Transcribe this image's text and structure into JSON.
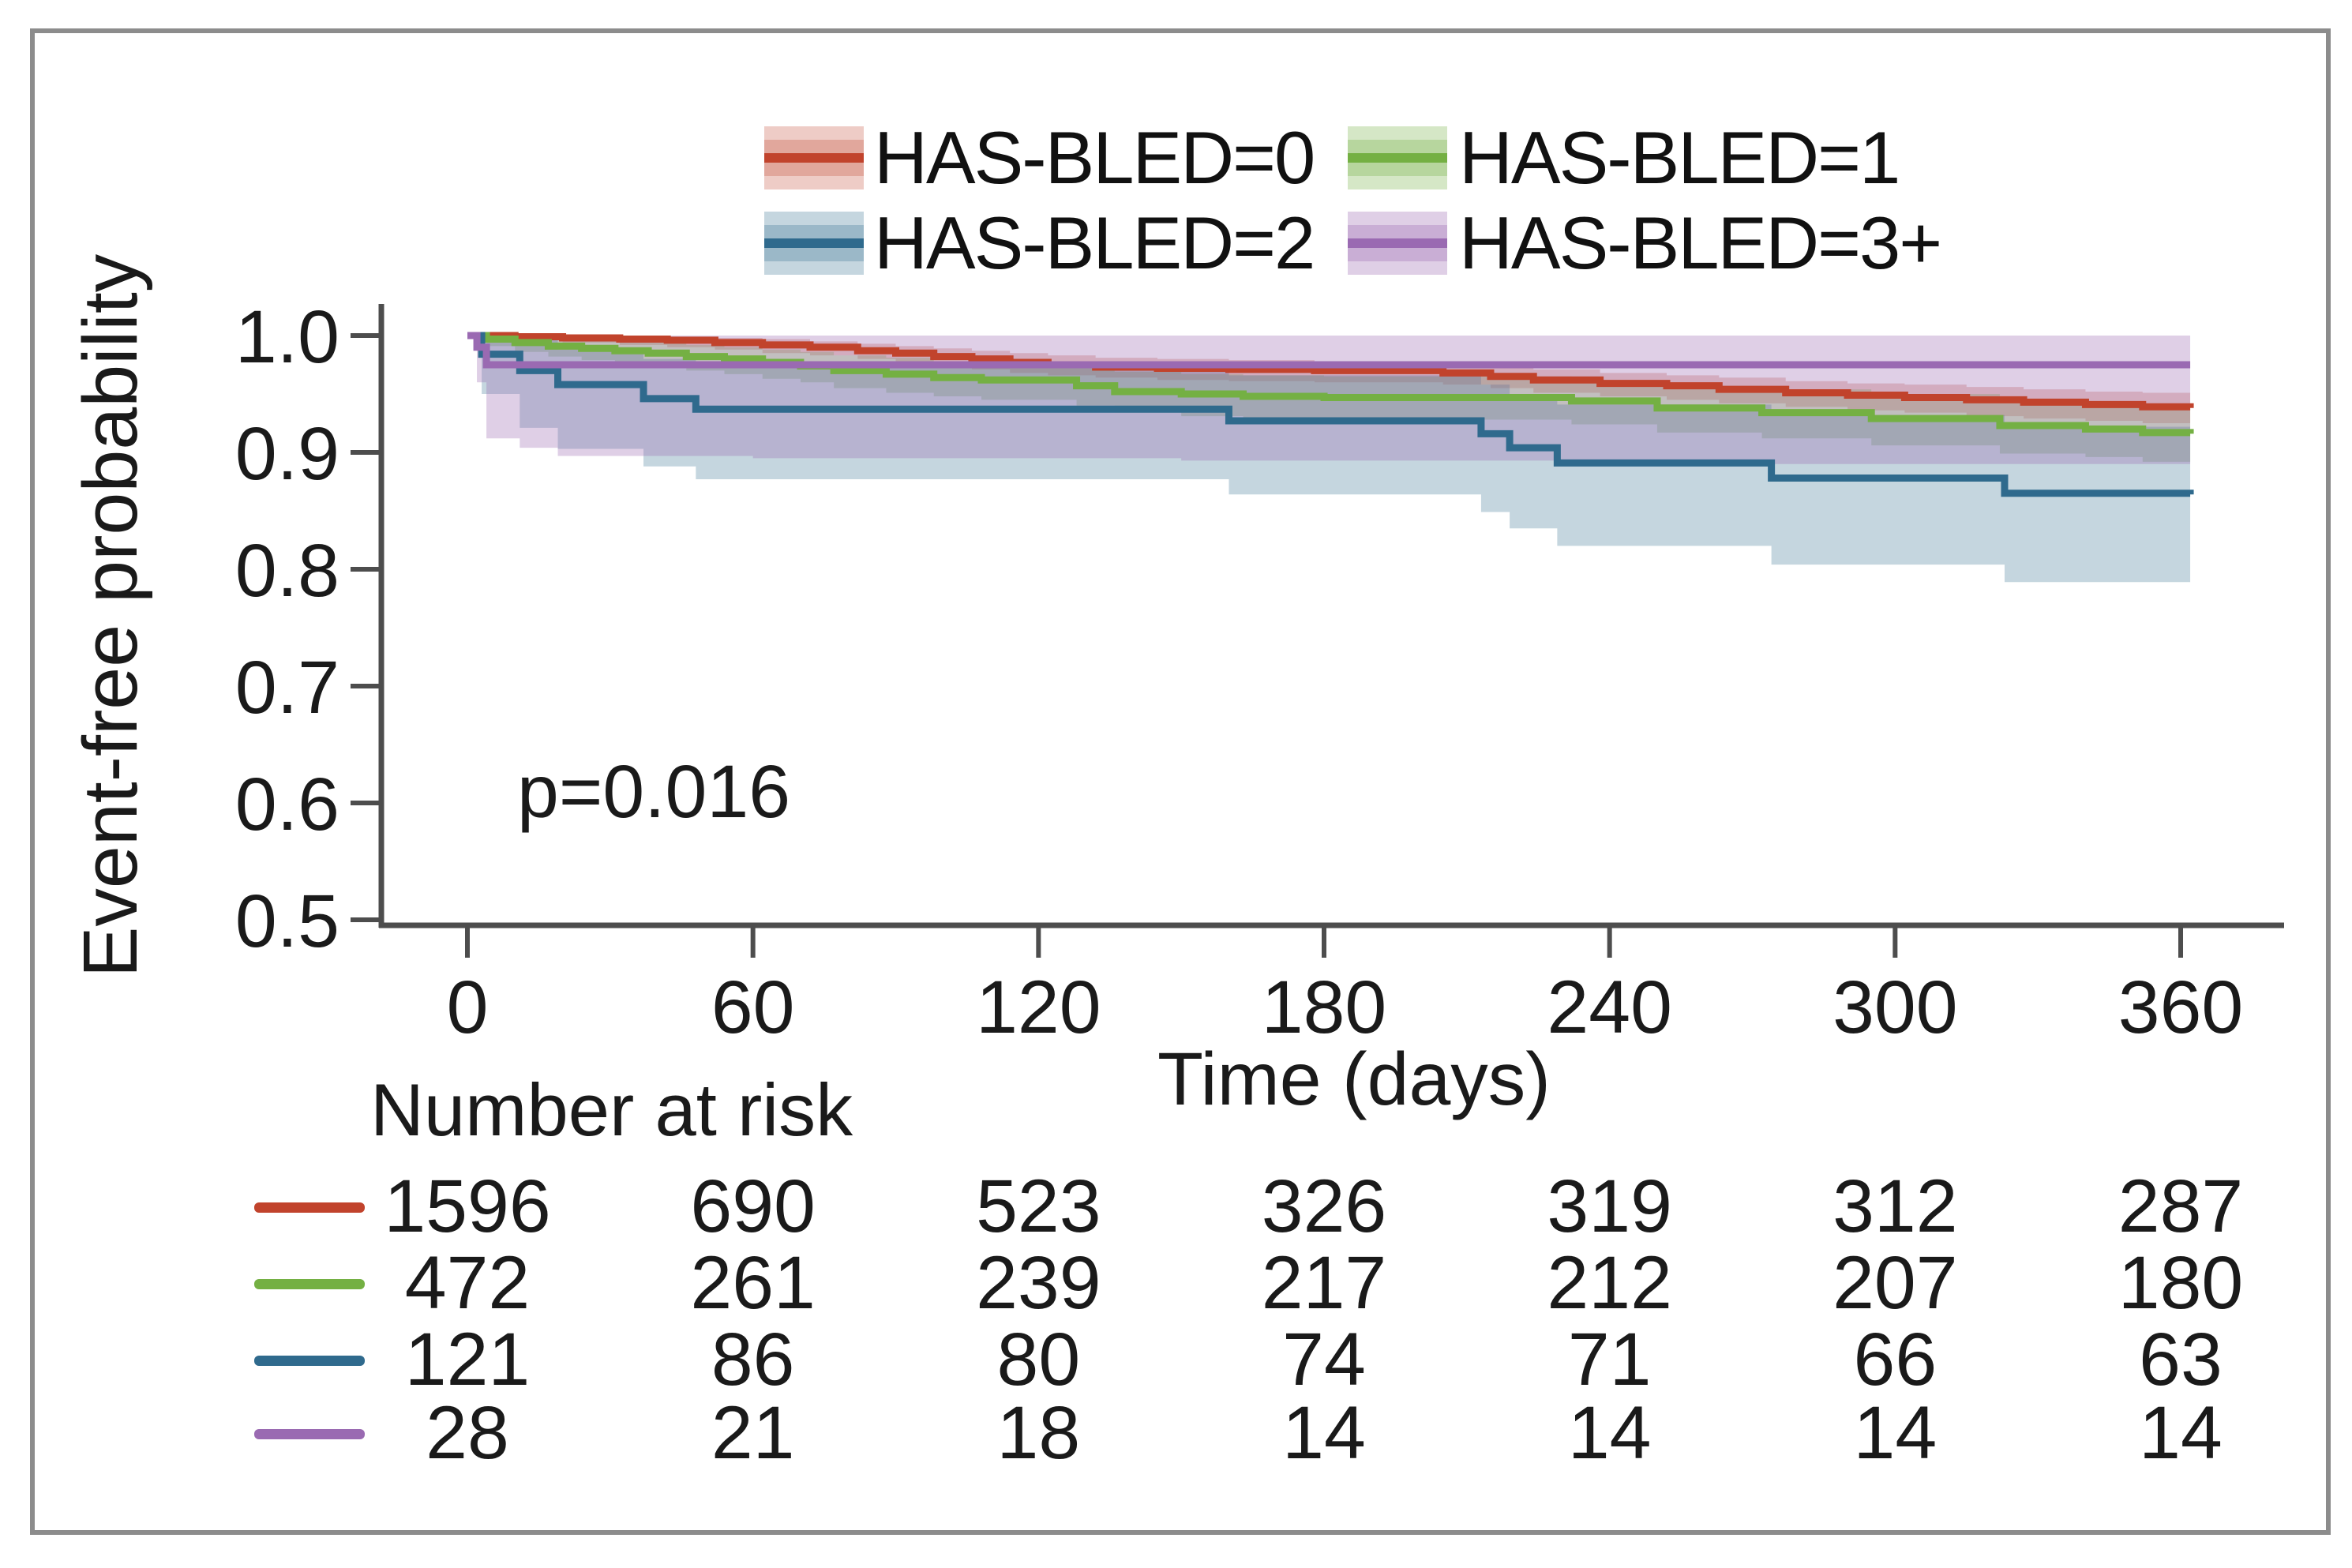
{
  "figure": {
    "border_color": "#8c8c8c",
    "background": "#ffffff",
    "axis_color": "#4d4d4d",
    "text_color": "#1a1a1a"
  },
  "chart_data": {
    "type": "line",
    "subtype": "kaplan-meier-step-with-confidence-bands",
    "title": "",
    "xlabel": "Time (days)",
    "ylabel": "Event-free probability",
    "annotation": "p=0.016",
    "xlim": [
      0,
      372
    ],
    "ylim": [
      0.5,
      1.0
    ],
    "x_ticks": [
      0,
      60,
      120,
      180,
      240,
      300,
      360
    ],
    "x_tick_labels": [
      "0",
      "60",
      "120",
      "180",
      "240",
      "300",
      "360"
    ],
    "y_ticks": [
      1.0,
      0.9,
      0.8,
      0.7,
      0.6,
      0.5
    ],
    "y_tick_labels": [
      "1.0",
      "0.9",
      "0.8",
      "0.7",
      "0.6",
      "0.5"
    ],
    "grid": false,
    "legend": {
      "position": "top-center",
      "items": [
        {
          "label": "HAS-BLED=0",
          "color": "#c1432c",
          "band_color": "rgba(193,67,44,0.27)"
        },
        {
          "label": "HAS-BLED=1",
          "color": "#74b043",
          "band_color": "rgba(116,176,67,0.30)"
        },
        {
          "label": "HAS-BLED=2",
          "color": "#2f6a8d",
          "band_color": "rgba(47,106,141,0.28)"
        },
        {
          "label": "HAS-BLED=3+",
          "color": "#9a6ab2",
          "band_color": "rgba(154,106,178,0.32)"
        }
      ]
    },
    "series": [
      {
        "name": "HAS-BLED=0",
        "color": "#c1432c",
        "band_color": "rgba(193,67,44,0.27)",
        "steps": [
          [
            0,
            1.0
          ],
          [
            10,
            0.999
          ],
          [
            20,
            0.998
          ],
          [
            32,
            0.997
          ],
          [
            42,
            0.996
          ],
          [
            52,
            0.994
          ],
          [
            62,
            0.992
          ],
          [
            72,
            0.99
          ],
          [
            82,
            0.987
          ],
          [
            90,
            0.985
          ],
          [
            98,
            0.982
          ],
          [
            106,
            0.98
          ],
          [
            114,
            0.977
          ],
          [
            122,
            0.975
          ],
          [
            132,
            0.973
          ],
          [
            145,
            0.972
          ],
          [
            160,
            0.971
          ],
          [
            178,
            0.97
          ],
          [
            205,
            0.968
          ],
          [
            215,
            0.965
          ],
          [
            224,
            0.962
          ],
          [
            238,
            0.959
          ],
          [
            252,
            0.957
          ],
          [
            263,
            0.954
          ],
          [
            277,
            0.951
          ],
          [
            290,
            0.949
          ],
          [
            302,
            0.947
          ],
          [
            315,
            0.945
          ],
          [
            327,
            0.943
          ],
          [
            340,
            0.941
          ],
          [
            352,
            0.939
          ],
          [
            362,
            0.938
          ]
        ],
        "ci": [
          [
            0,
            1.0,
            1.0
          ],
          [
            10,
            0.996,
            1.0
          ],
          [
            20,
            0.994,
            1.0
          ],
          [
            32,
            0.992,
            1.0
          ],
          [
            42,
            0.99,
            0.999
          ],
          [
            52,
            0.988,
            0.998
          ],
          [
            62,
            0.985,
            0.997
          ],
          [
            72,
            0.983,
            0.995
          ],
          [
            82,
            0.98,
            0.993
          ],
          [
            90,
            0.977,
            0.991
          ],
          [
            98,
            0.974,
            0.989
          ],
          [
            106,
            0.971,
            0.987
          ],
          [
            114,
            0.968,
            0.985
          ],
          [
            122,
            0.966,
            0.983
          ],
          [
            132,
            0.964,
            0.981
          ],
          [
            145,
            0.962,
            0.98
          ],
          [
            160,
            0.961,
            0.979
          ],
          [
            178,
            0.96,
            0.978
          ],
          [
            205,
            0.958,
            0.977
          ],
          [
            215,
            0.955,
            0.974
          ],
          [
            224,
            0.951,
            0.971
          ],
          [
            238,
            0.948,
            0.968
          ],
          [
            252,
            0.945,
            0.966
          ],
          [
            263,
            0.942,
            0.964
          ],
          [
            277,
            0.939,
            0.961
          ],
          [
            290,
            0.936,
            0.959
          ],
          [
            302,
            0.934,
            0.958
          ],
          [
            315,
            0.931,
            0.956
          ],
          [
            327,
            0.929,
            0.954
          ],
          [
            340,
            0.927,
            0.952
          ],
          [
            352,
            0.925,
            0.951
          ],
          [
            362,
            0.923,
            0.95
          ]
        ]
      },
      {
        "name": "HAS-BLED=1",
        "color": "#74b043",
        "band_color": "rgba(116,176,67,0.30)",
        "steps": [
          [
            0,
            1.0
          ],
          [
            4,
            0.997
          ],
          [
            10,
            0.994
          ],
          [
            17,
            0.991
          ],
          [
            24,
            0.989
          ],
          [
            31,
            0.987
          ],
          [
            38,
            0.985
          ],
          [
            46,
            0.982
          ],
          [
            54,
            0.98
          ],
          [
            62,
            0.977
          ],
          [
            70,
            0.974
          ],
          [
            77,
            0.97
          ],
          [
            88,
            0.967
          ],
          [
            98,
            0.964
          ],
          [
            108,
            0.962
          ],
          [
            128,
            0.957
          ],
          [
            136,
            0.952
          ],
          [
            150,
            0.95
          ],
          [
            163,
            0.948
          ],
          [
            180,
            0.947
          ],
          [
            232,
            0.944
          ],
          [
            250,
            0.938
          ],
          [
            272,
            0.934
          ],
          [
            295,
            0.929
          ],
          [
            322,
            0.923
          ],
          [
            340,
            0.92
          ],
          [
            352,
            0.917
          ],
          [
            362,
            0.916
          ]
        ],
        "ci": [
          [
            0,
            1.0,
            1.0
          ],
          [
            4,
            0.991,
            1.0
          ],
          [
            10,
            0.986,
            1.0
          ],
          [
            17,
            0.982,
            0.999
          ],
          [
            24,
            0.979,
            0.997
          ],
          [
            31,
            0.976,
            0.996
          ],
          [
            38,
            0.973,
            0.994
          ],
          [
            46,
            0.97,
            0.992
          ],
          [
            54,
            0.967,
            0.99
          ],
          [
            62,
            0.963,
            0.988
          ],
          [
            70,
            0.96,
            0.986
          ],
          [
            77,
            0.955,
            0.983
          ],
          [
            88,
            0.951,
            0.981
          ],
          [
            98,
            0.948,
            0.978
          ],
          [
            108,
            0.945,
            0.977
          ],
          [
            128,
            0.94,
            0.973
          ],
          [
            136,
            0.934,
            0.969
          ],
          [
            150,
            0.931,
            0.967
          ],
          [
            163,
            0.929,
            0.966
          ],
          [
            180,
            0.928,
            0.965
          ],
          [
            232,
            0.924,
            0.962
          ],
          [
            250,
            0.917,
            0.957
          ],
          [
            272,
            0.912,
            0.954
          ],
          [
            295,
            0.906,
            0.95
          ],
          [
            322,
            0.899,
            0.945
          ],
          [
            340,
            0.896,
            0.943
          ],
          [
            352,
            0.892,
            0.941
          ],
          [
            362,
            0.891,
            0.94
          ]
        ]
      },
      {
        "name": "HAS-BLED=2",
        "color": "#2f6a8d",
        "band_color": "rgba(47,106,141,0.28)",
        "steps": [
          [
            0,
            1.0
          ],
          [
            3,
            0.984
          ],
          [
            11,
            0.97
          ],
          [
            19,
            0.958
          ],
          [
            37,
            0.946
          ],
          [
            48,
            0.937
          ],
          [
            160,
            0.927
          ],
          [
            213,
            0.916
          ],
          [
            219,
            0.904
          ],
          [
            229,
            0.891
          ],
          [
            274,
            0.878
          ],
          [
            323,
            0.865
          ],
          [
            362,
            0.864
          ]
        ],
        "ci": [
          [
            0,
            1.0,
            1.0
          ],
          [
            3,
            0.95,
            1.0
          ],
          [
            11,
            0.921,
            0.996
          ],
          [
            19,
            0.903,
            0.988
          ],
          [
            37,
            0.888,
            0.98
          ],
          [
            48,
            0.877,
            0.972
          ],
          [
            160,
            0.864,
            0.966
          ],
          [
            213,
            0.849,
            0.958
          ],
          [
            219,
            0.835,
            0.95
          ],
          [
            229,
            0.82,
            0.941
          ],
          [
            274,
            0.804,
            0.932
          ],
          [
            323,
            0.789,
            0.922
          ],
          [
            362,
            0.788,
            0.921
          ]
        ]
      },
      {
        "name": "HAS-BLED=3+",
        "color": "#9a6ab2",
        "band_color": "rgba(154,106,178,0.32)",
        "steps": [
          [
            0,
            1.0
          ],
          [
            2,
            0.99
          ],
          [
            4,
            0.975
          ],
          [
            362,
            0.975
          ]
        ],
        "ci": [
          [
            0,
            1.0,
            1.0
          ],
          [
            2,
            0.96,
            1.0
          ],
          [
            4,
            0.912,
            1.0
          ],
          [
            11,
            0.904,
            1.0
          ],
          [
            19,
            0.897,
            1.0
          ],
          [
            60,
            0.895,
            1.0
          ],
          [
            150,
            0.893,
            1.0
          ],
          [
            230,
            0.89,
            1.0
          ],
          [
            362,
            0.888,
            1.0
          ]
        ]
      }
    ],
    "risk_table": {
      "title": "Number at risk",
      "times": [
        0,
        60,
        120,
        180,
        240,
        300,
        360
      ],
      "rows": [
        {
          "label": "HAS-BLED=0",
          "color": "#c1432c",
          "values": [
            1596,
            690,
            523,
            326,
            319,
            312,
            287
          ]
        },
        {
          "label": "HAS-BLED=1",
          "color": "#74b043",
          "values": [
            472,
            261,
            239,
            217,
            212,
            207,
            180
          ]
        },
        {
          "label": "HAS-BLED=2",
          "color": "#2f6a8d",
          "values": [
            121,
            86,
            80,
            74,
            71,
            66,
            63
          ]
        },
        {
          "label": "HAS-BLED=3+",
          "color": "#9a6ab2",
          "values": [
            28,
            21,
            18,
            14,
            14,
            14,
            14
          ]
        }
      ]
    }
  }
}
